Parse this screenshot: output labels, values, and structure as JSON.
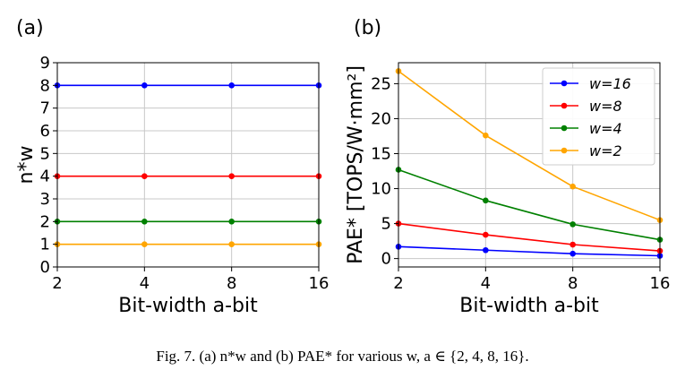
{
  "caption": "Fig. 7.  (a) n*w and (b) PAE* for various w, a ∈ {2, 4, 8, 16}.",
  "chart_data": [
    {
      "type": "line",
      "panel_label": "(a)",
      "xlabel": "Bit-width a-bit",
      "ylabel": "n*w",
      "categories": [
        "2",
        "4",
        "8",
        "16"
      ],
      "ylim": [
        0,
        9
      ],
      "yticks": [
        0,
        1,
        2,
        3,
        4,
        5,
        6,
        7,
        8,
        9
      ],
      "grid": true,
      "series": [
        {
          "color": "#0000ff",
          "values": [
            8,
            8,
            8,
            8
          ]
        },
        {
          "color": "#ff0000",
          "values": [
            4,
            4,
            4,
            4
          ]
        },
        {
          "color": "#008000",
          "values": [
            2,
            2,
            2,
            2
          ]
        },
        {
          "color": "#ffa500",
          "values": [
            1,
            1,
            1,
            1
          ]
        }
      ]
    },
    {
      "type": "line",
      "panel_label": "(b)",
      "xlabel": "Bit-width a-bit",
      "ylabel": "PAE* [TOPS/W·mm²]",
      "categories": [
        "2",
        "4",
        "8",
        "16"
      ],
      "ylim": [
        -1.2,
        28
      ],
      "yticks": [
        0,
        5,
        10,
        15,
        20,
        25
      ],
      "grid": true,
      "legend_position": "top-right",
      "series": [
        {
          "name": "w=16",
          "color": "#0000ff",
          "values": [
            1.7,
            1.2,
            0.7,
            0.4
          ]
        },
        {
          "name": "w=8",
          "color": "#ff0000",
          "values": [
            5.0,
            3.4,
            2.0,
            1.1
          ]
        },
        {
          "name": "w=4",
          "color": "#008000",
          "values": [
            12.7,
            8.3,
            4.9,
            2.7
          ]
        },
        {
          "name": "w=2",
          "color": "#ffa500",
          "values": [
            26.8,
            17.6,
            10.3,
            5.5
          ]
        }
      ]
    }
  ]
}
